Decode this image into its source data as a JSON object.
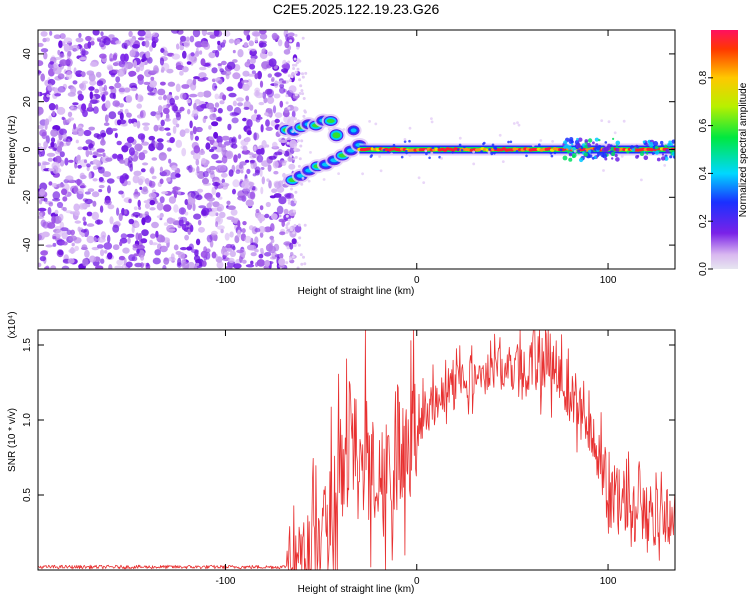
{
  "title": "C2E5.2025.122.19.23.G26",
  "colors": {
    "snr_line": "#e83030",
    "axis": "#000000",
    "noise_purple": "#7a22e8",
    "noise_light": "#d8b8f4"
  },
  "chart_data": [
    {
      "type": "heatmap",
      "xlabel": "Height of straight line (km)",
      "ylabel": "Frequency (Hz)",
      "xlim": [
        -198,
        135
      ],
      "ylim": [
        -50,
        50
      ],
      "xticks": [
        -100,
        0,
        100
      ],
      "yticks": [
        -40,
        -20,
        0,
        20,
        40
      ],
      "colorbar": {
        "label": "Normalized spectral amplitude",
        "range": [
          0,
          1
        ],
        "ticks": [
          "0.0",
          "0.2",
          "0.4",
          "0.6",
          "0.8"
        ],
        "colormap": "rainbow"
      },
      "features": {
        "noise_region_x": [
          -198,
          -68
        ],
        "main_track_x": [
          -30,
          135
        ],
        "main_track_freq": 0,
        "upper_branch": {
          "x": [
            -68,
            -45
          ],
          "freq": [
            8,
            12
          ]
        },
        "lower_branch": {
          "x": [
            -65,
            -30
          ],
          "freq": [
            -13,
            2
          ]
        }
      }
    },
    {
      "type": "line",
      "xlabel": "Height of straight line (km)",
      "ylabel": "SNR (10 * v/v)",
      "ylabel_exponent": "(x10⁴)",
      "xlim": [
        -198,
        135
      ],
      "ylim": [
        0,
        1.6
      ],
      "xticks": [
        -100,
        0,
        100
      ],
      "yticks": [
        "0.5",
        "1.0",
        "1.5"
      ],
      "series": [
        {
          "x": [
            -198,
            -150,
            -100,
            -70,
            -60,
            -50,
            -45,
            -40,
            -35,
            -30,
            -25,
            -20,
            -15,
            -10,
            -5,
            0,
            5,
            10,
            15,
            20,
            25,
            30,
            40,
            50,
            60,
            70,
            75,
            80,
            85,
            90,
            95,
            100,
            105,
            110,
            115,
            120,
            125,
            130,
            135
          ],
          "y": [
            0.02,
            0.02,
            0.02,
            0.02,
            0.05,
            0.18,
            0.35,
            0.55,
            0.85,
            0.7,
            0.8,
            0.55,
            0.6,
            0.85,
            0.95,
            0.95,
            1.05,
            1.12,
            1.2,
            1.26,
            1.28,
            1.3,
            1.33,
            1.35,
            1.36,
            1.38,
            1.33,
            1.2,
            1.05,
            0.9,
            0.75,
            0.6,
            0.5,
            0.42,
            0.38,
            0.38,
            0.36,
            0.35,
            0.35
          ]
        }
      ]
    }
  ]
}
